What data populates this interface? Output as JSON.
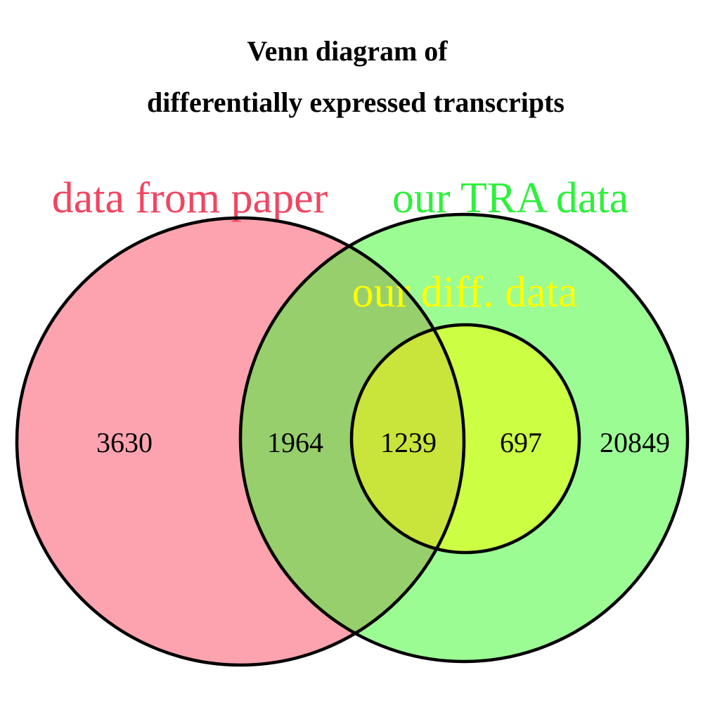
{
  "title": {
    "line1": "Venn diagram of",
    "line2": "differentially expressed transcripts"
  },
  "sets": [
    {
      "key": "paper",
      "label": "data from paper",
      "label_color": "#f24560",
      "fill_color": "#fda3af"
    },
    {
      "key": "tra",
      "label": "our TRA data",
      "label_color": "#2ef03c",
      "fill_color": "#9cfc94"
    },
    {
      "key": "diff",
      "label": "our diff. data",
      "label_color": "#ffff00",
      "fill_color": "#ccff44"
    }
  ],
  "regions": [
    {
      "sets": [
        "data from paper"
      ],
      "count": "3630"
    },
    {
      "sets": [
        "data from paper",
        "our TRA data"
      ],
      "count": "1964"
    },
    {
      "sets": [
        "data from paper",
        "our TRA data",
        "our diff. data"
      ],
      "count": "1239"
    },
    {
      "sets": [
        "our TRA data",
        "our diff. data"
      ],
      "count": "697"
    },
    {
      "sets": [
        "our TRA data"
      ],
      "count": "20849"
    }
  ],
  "colors": {
    "overlap_paper_tra": "#97cf6c",
    "overlap_all": "#c9e43a",
    "outline": "#000000"
  }
}
